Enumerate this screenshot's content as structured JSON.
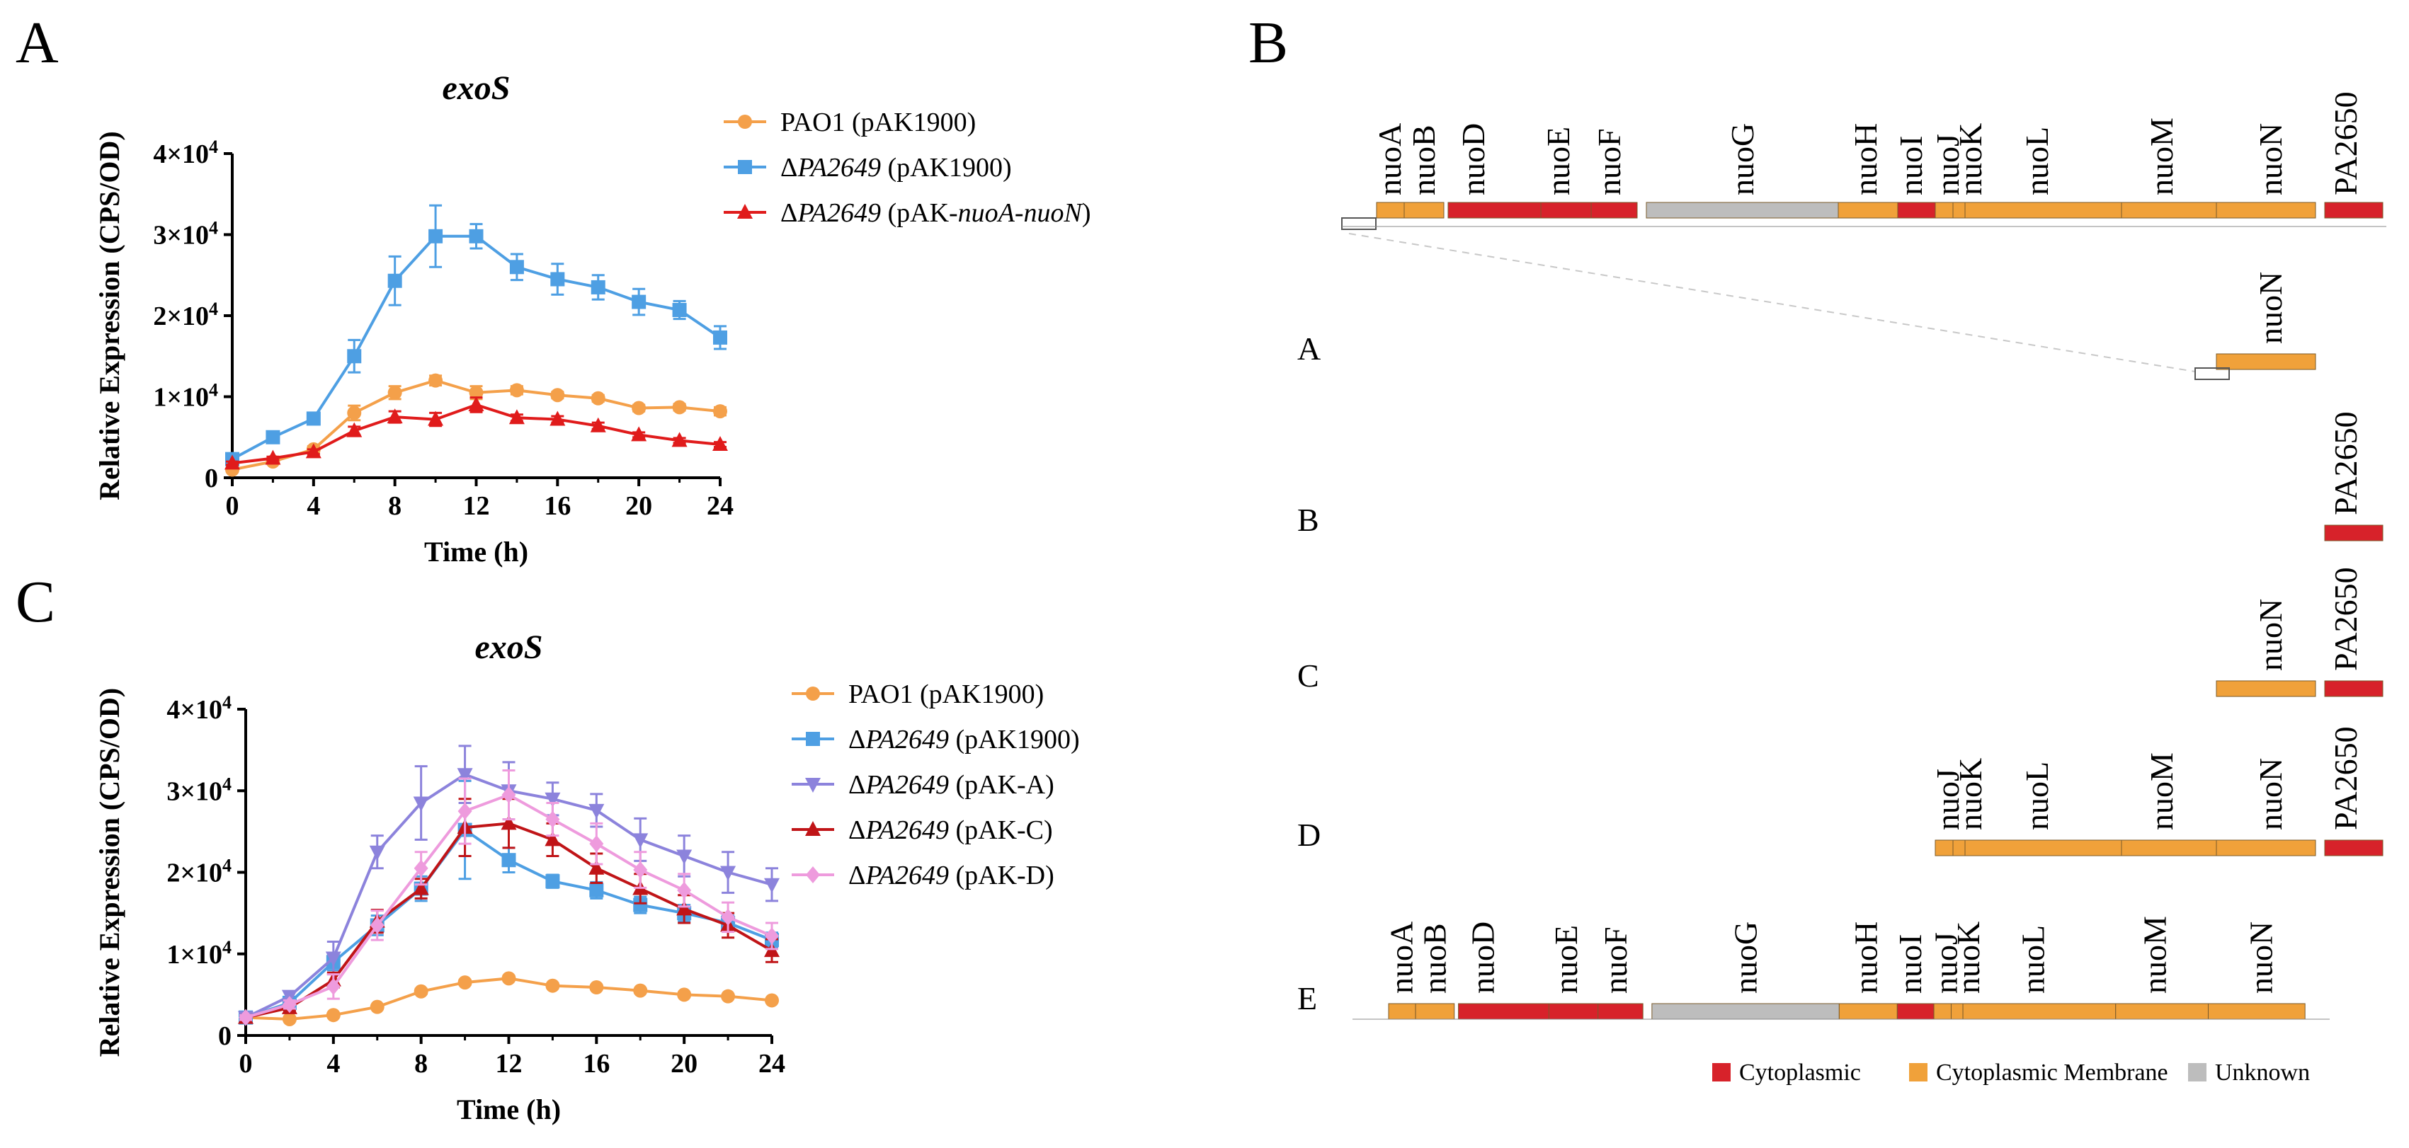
{
  "panel_letters": {
    "a": "A",
    "b": "B",
    "c": "C"
  },
  "delta": "Δ",
  "chart_data": [
    {
      "type": "line",
      "panel": "A",
      "title": "exoS",
      "xlabel": "Time (h)",
      "ylabel": "Relative Expression (CPS/OD)",
      "xlim": [
        0,
        24
      ],
      "ylim": [
        0,
        40000
      ],
      "xticks": [
        0,
        4,
        8,
        12,
        16,
        20,
        24
      ],
      "yticks": [
        {
          "mant": "0",
          "exp": ""
        },
        {
          "mant": "1×10",
          "exp": "4"
        },
        {
          "mant": "2×10",
          "exp": "4"
        },
        {
          "mant": "3×10",
          "exp": "4"
        },
        {
          "mant": "4×10",
          "exp": "4"
        }
      ],
      "x": [
        0,
        2,
        4,
        6,
        8,
        10,
        12,
        14,
        16,
        18,
        20,
        22,
        24
      ],
      "series": [
        {
          "name": "PAO1 (pAK1900)",
          "plain": "PAO1 (pAK1900)",
          "color": "#F4A04A",
          "marker": "circle",
          "values": [
            1000,
            2000,
            3500,
            8000,
            10500,
            12000,
            10500,
            10800,
            10200,
            9800,
            8600,
            8700,
            8200
          ],
          "errors": [
            300,
            300,
            400,
            900,
            800,
            600,
            800,
            500,
            400,
            400,
            400,
            400,
            500
          ]
        },
        {
          "name": "ΔPA2649 (pAK1900)",
          "italic": "PA2649",
          "suffix": " (pAK1900)",
          "color": "#4E9FE3",
          "marker": "square",
          "values": [
            2300,
            5000,
            7300,
            15000,
            24300,
            29800,
            29800,
            26000,
            24500,
            23500,
            21700,
            20700,
            17300
          ],
          "errors": [
            300,
            400,
            400,
            2000,
            3000,
            3800,
            1500,
            1600,
            1900,
            1500,
            1600,
            1100,
            1400
          ]
        },
        {
          "name": "ΔPA2649 (pAK-nuoA-nuoN)",
          "italic": "PA2649",
          "suffix": " (pAK-",
          "italic2": "nuoA-nuoN",
          "suffix2": ")",
          "color": "#E01B1B",
          "marker": "triangle",
          "values": [
            1800,
            2400,
            3200,
            5800,
            7500,
            7200,
            9000,
            7400,
            7200,
            6400,
            5300,
            4600,
            4100
          ],
          "errors": [
            200,
            200,
            300,
            500,
            700,
            800,
            900,
            400,
            400,
            400,
            300,
            300,
            300
          ]
        }
      ]
    },
    {
      "type": "line",
      "panel": "C",
      "title": "exoS",
      "xlabel": "Time (h)",
      "ylabel": "Relative Expression (CPS/OD)",
      "xlim": [
        0,
        24
      ],
      "ylim": [
        0,
        40000
      ],
      "xticks": [
        0,
        4,
        8,
        12,
        16,
        20,
        24
      ],
      "yticks": [
        {
          "mant": "0",
          "exp": ""
        },
        {
          "mant": "1×10",
          "exp": "4"
        },
        {
          "mant": "2×10",
          "exp": "4"
        },
        {
          "mant": "3×10",
          "exp": "4"
        },
        {
          "mant": "4×10",
          "exp": "4"
        }
      ],
      "x": [
        0,
        2,
        4,
        6,
        8,
        10,
        12,
        14,
        16,
        18,
        20,
        22,
        24
      ],
      "series": [
        {
          "name": "PAO1 (pAK1900)",
          "plain": "PAO1 (pAK1900)",
          "color": "#F4A04A",
          "marker": "circle",
          "values": [
            2200,
            2000,
            2500,
            3500,
            5400,
            6500,
            7000,
            6100,
            5900,
            5500,
            5000,
            4800,
            4300
          ],
          "errors": [
            200,
            200,
            200,
            200,
            300,
            300,
            300,
            300,
            200,
            200,
            200,
            200,
            200
          ]
        },
        {
          "name": "ΔPA2649 (pAK1900)",
          "italic": "PA2649",
          "suffix": " (pAK1900)",
          "color": "#4E9FE3",
          "marker": "square",
          "values": [
            2200,
            4000,
            9000,
            13500,
            18000,
            25200,
            21500,
            18900,
            17800,
            16000,
            15000,
            13800,
            11700
          ],
          "errors": [
            300,
            500,
            1000,
            1200,
            1500,
            6000,
            1500,
            800,
            1000,
            1000,
            1000,
            900,
            900
          ]
        },
        {
          "name": "ΔPA2649 (pAK-A)",
          "italic": "PA2649",
          "suffix": " (pAK-A)",
          "color": "#8C83DC",
          "marker": "triangle-down",
          "values": [
            2200,
            4800,
            9500,
            22500,
            28500,
            32000,
            30000,
            29000,
            27600,
            24000,
            22000,
            20000,
            18500
          ],
          "errors": [
            300,
            600,
            2000,
            2000,
            4500,
            3500,
            3500,
            2000,
            2000,
            2600,
            2500,
            2500,
            2000
          ]
        },
        {
          "name": "ΔPA2649 (pAK-C)",
          "italic": "PA2649",
          "suffix": " (pAK-C)",
          "color": "#C01417",
          "marker": "triangle",
          "values": [
            2200,
            3400,
            6800,
            14000,
            18000,
            25500,
            26000,
            24000,
            20500,
            18000,
            15500,
            13500,
            10400
          ],
          "errors": [
            300,
            400,
            900,
            1400,
            1200,
            3500,
            3000,
            2000,
            1800,
            1800,
            1700,
            1500,
            1400
          ]
        },
        {
          "name": "ΔPA2649 (pAK-D)",
          "italic": "PA2649",
          "suffix": " (pAK-D)",
          "color": "#EE9BDD",
          "marker": "diamond",
          "values": [
            2200,
            3800,
            6000,
            13500,
            20500,
            27500,
            29500,
            26500,
            23500,
            20300,
            17800,
            14500,
            12200
          ],
          "errors": [
            300,
            500,
            1500,
            1800,
            2000,
            4000,
            3000,
            2000,
            2500,
            2200,
            2000,
            1800,
            1600
          ]
        }
      ]
    }
  ],
  "operon": {
    "colors": {
      "cytoplasmic": "#D7222A",
      "membrane": "#F0A13A",
      "unknown": "#BDBDBD"
    },
    "full_genes": [
      "nuoA",
      "nuoB",
      "nuoD",
      "nuoE",
      "nuoF",
      "nuoG",
      "nuoH",
      "nuoI",
      "nuoJ",
      "nuoK",
      "nuoL",
      "nuoM",
      "nuoN",
      "PA2650"
    ],
    "rows": [
      {
        "label": "A",
        "genes": [
          "nuoN"
        ]
      },
      {
        "label": "B",
        "genes": [
          "PA2650"
        ]
      },
      {
        "label": "C",
        "genes": [
          "nuoN",
          "PA2650"
        ]
      },
      {
        "label": "D",
        "genes": [
          "nuoJ",
          "nuoK",
          "nuoL",
          "nuoM",
          "nuoN",
          "PA2650"
        ]
      },
      {
        "label": "E",
        "genes": [
          "nuoA",
          "nuoB",
          "nuoD",
          "nuoE",
          "nuoF",
          "nuoG",
          "nuoH",
          "nuoI",
          "nuoJ",
          "nuoK",
          "nuoL",
          "nuoM",
          "nuoN"
        ]
      }
    ],
    "legend": [
      {
        "label": "Cytoplasmic",
        "color": "#D7222A"
      },
      {
        "label": "Cytoplasmic Membrane",
        "color": "#F0A13A"
      },
      {
        "label": "Unknown",
        "color": "#BDBDBD"
      }
    ]
  }
}
